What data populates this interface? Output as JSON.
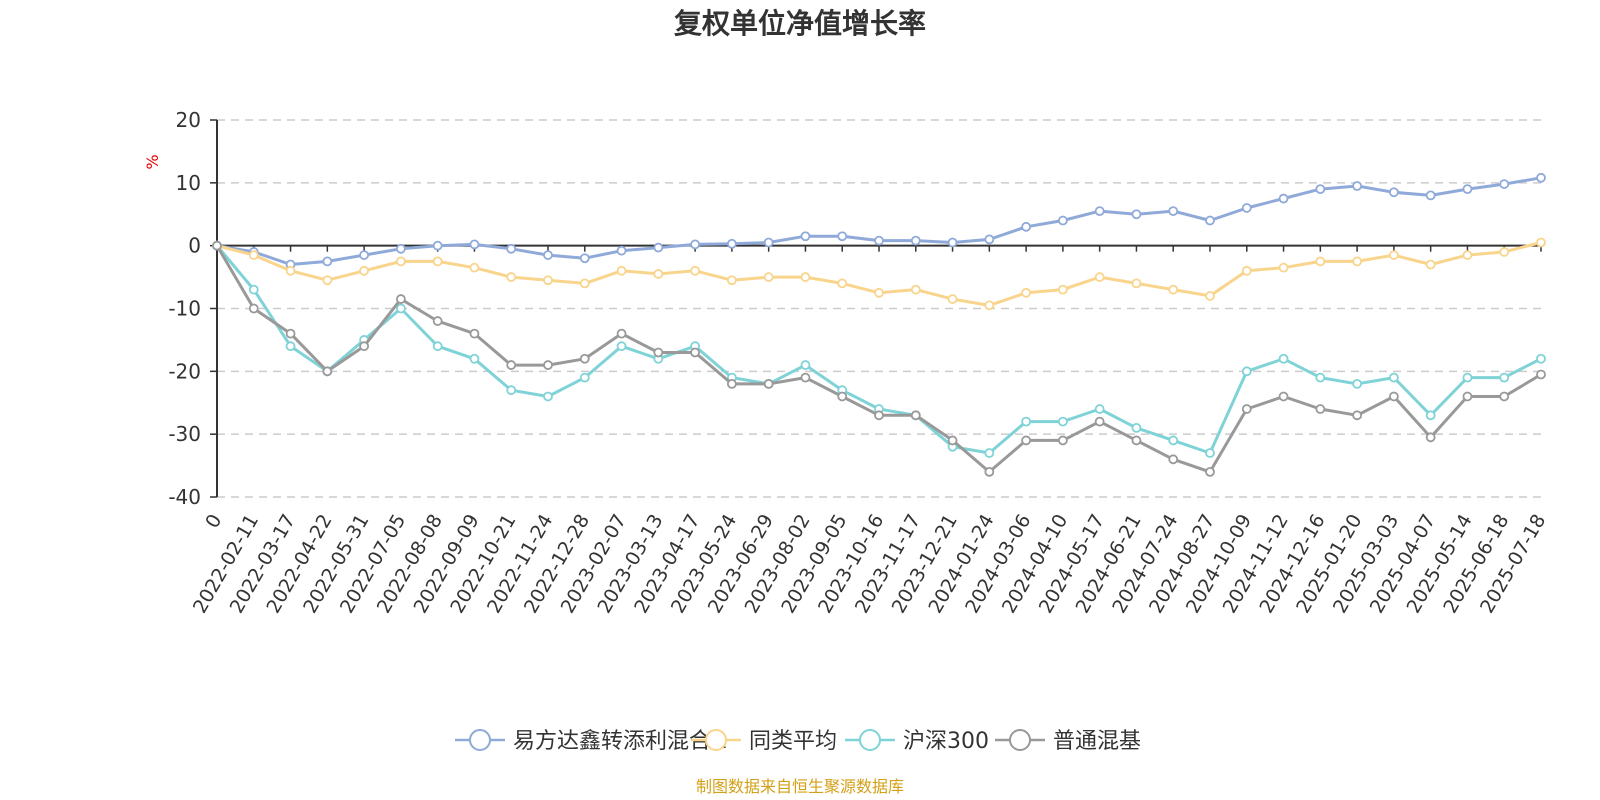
{
  "chart_data": {
    "type": "line",
    "title": "复权单位净值增长率",
    "ylabel": "%",
    "ylim": [
      -40,
      20
    ],
    "yticks": [
      20,
      10,
      0,
      -10,
      -20,
      -30,
      -40
    ],
    "grid": true,
    "legend_position": "bottom",
    "source": "制图数据来自恒生聚源数据库",
    "x_labels": [
      "0",
      "2022-02-11",
      "2022-03-17",
      "2022-04-22",
      "2022-05-31",
      "2022-07-05",
      "2022-08-08",
      "2022-09-09",
      "2022-10-21",
      "2022-11-24",
      "2022-12-28",
      "2023-02-07",
      "2023-03-13",
      "2023-04-17",
      "2023-05-24",
      "2023-06-29",
      "2023-08-02",
      "2023-09-05",
      "2023-10-16",
      "2023-11-17",
      "2023-12-21",
      "2024-01-24",
      "2024-03-06",
      "2024-04-10",
      "2024-05-17",
      "2024-06-21",
      "2024-07-24",
      "2024-08-27",
      "2024-10-09",
      "2024-11-12",
      "2024-12-16",
      "2025-01-20",
      "2025-03-03",
      "2025-04-07",
      "2025-05-14",
      "2025-06-18",
      "2025-07-18"
    ],
    "series": [
      {
        "name": "易方达鑫转添利混合A",
        "color": "#8fa9d9",
        "values": [
          0,
          -1,
          -3,
          -2.5,
          -1.5,
          -0.5,
          0,
          0.2,
          -0.5,
          -1.5,
          -2,
          -0.8,
          -0.3,
          0.2,
          0.3,
          0.5,
          1.5,
          1.5,
          0.8,
          0.8,
          0.5,
          1,
          3,
          4,
          5.5,
          5,
          5.5,
          4,
          6,
          7.5,
          9,
          9.5,
          8.5,
          8,
          9,
          9.8,
          10.8
        ]
      },
      {
        "name": "同类平均",
        "color": "#f9d48c",
        "values": [
          0,
          -1.5,
          -4,
          -5.5,
          -4,
          -2.5,
          -2.5,
          -3.5,
          -5,
          -5.5,
          -6,
          -4,
          -4.5,
          -4,
          -5.5,
          -5,
          -5,
          -6,
          -7.5,
          -7,
          -8.5,
          -9.5,
          -7.5,
          -7,
          -5,
          -6,
          -7,
          -8,
          -4,
          -3.5,
          -2.5,
          -2.5,
          -1.5,
          -3,
          -1.5,
          -1,
          0.5
        ]
      },
      {
        "name": "沪深300",
        "color": "#7fd3d7",
        "values": [
          0,
          -7,
          -16,
          -20,
          -15,
          -10,
          -16,
          -18,
          -23,
          -24,
          -21,
          -16,
          -18,
          -16,
          -21,
          -22,
          -19,
          -23,
          -26,
          -27,
          -32,
          -33,
          -28,
          -28,
          -26,
          -29,
          -31,
          -33,
          -20,
          -18,
          -21,
          -22,
          -21,
          -27,
          -21,
          -21,
          -18
        ]
      },
      {
        "name": "普通混基",
        "color": "#999999",
        "values": [
          0,
          -10,
          -14,
          -20,
          -16,
          -8.5,
          -12,
          -14,
          -19,
          -19,
          -18,
          -14,
          -17,
          -17,
          -22,
          -22,
          -21,
          -24,
          -27,
          -27,
          -31,
          -36,
          -31,
          -31,
          -28,
          -31,
          -34,
          -36,
          -26,
          -24,
          -26,
          -27,
          -24,
          -30.5,
          -24,
          -24,
          -20.5
        ]
      }
    ]
  }
}
